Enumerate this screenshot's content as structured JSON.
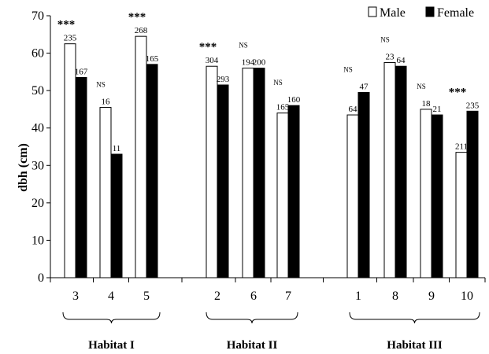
{
  "chart_data": {
    "type": "bar",
    "ylabel": "dbh (cm)",
    "ylim": [
      0,
      70
    ],
    "yticks": [
      0,
      10,
      20,
      30,
      40,
      50,
      60,
      70
    ],
    "categories": [
      "3",
      "4",
      "5",
      "2",
      "6",
      "7",
      "1",
      "8",
      "9",
      "10"
    ],
    "series": [
      {
        "name": "Male",
        "color": "#ffffff",
        "values": [
          62.5,
          45.5,
          64.5,
          56.5,
          56,
          44,
          43.5,
          57.5,
          45,
          33.5
        ],
        "n": [
          "235",
          "16",
          "268",
          "304",
          "194",
          "165",
          "64",
          "23",
          "18",
          "211"
        ]
      },
      {
        "name": "Female",
        "color": "#000000",
        "values": [
          53.5,
          33,
          57,
          51.5,
          56,
          46,
          49.5,
          56.5,
          43.5,
          44.5
        ],
        "n": [
          "167",
          "11",
          "165",
          "293",
          "200",
          "160",
          "47",
          "64",
          "21",
          "235"
        ]
      }
    ],
    "significance": [
      "***",
      "NS",
      "***",
      "***",
      "NS",
      "NS",
      "NS",
      "NS",
      "NS",
      "***"
    ],
    "groups": [
      {
        "label": "Habitat I",
        "categories": [
          "3",
          "4",
          "5"
        ]
      },
      {
        "label": "Habitat II",
        "categories": [
          "2",
          "6",
          "7"
        ]
      },
      {
        "label": "Habitat III",
        "categories": [
          "1",
          "8",
          "9",
          "10"
        ]
      }
    ],
    "legend": {
      "position": "top-right",
      "entries": [
        "Male",
        "Female"
      ]
    }
  }
}
